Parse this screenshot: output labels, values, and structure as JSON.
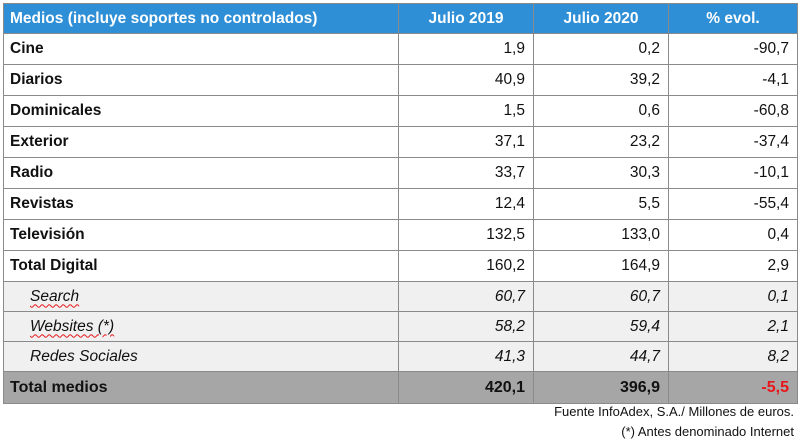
{
  "table": {
    "headers": [
      "Medios (incluye soportes no controlados)",
      "Julio 2019",
      "Julio 2020",
      "% evol."
    ],
    "rows": [
      {
        "label": "Cine",
        "y2019": "1,9",
        "y2020": "0,2",
        "evol": "-90,7"
      },
      {
        "label": "Diarios",
        "y2019": "40,9",
        "y2020": "39,2",
        "evol": "-4,1"
      },
      {
        "label": "Dominicales",
        "y2019": "1,5",
        "y2020": "0,6",
        "evol": "-60,8"
      },
      {
        "label": "Exterior",
        "y2019": "37,1",
        "y2020": "23,2",
        "evol": "-37,4"
      },
      {
        "label": "Radio",
        "y2019": "33,7",
        "y2020": "30,3",
        "evol": "-10,1"
      },
      {
        "label": "Revistas",
        "y2019": "12,4",
        "y2020": "5,5",
        "evol": "-55,4"
      },
      {
        "label": "Televisión",
        "y2019": "132,5",
        "y2020": "133,0",
        "evol": "0,4"
      },
      {
        "label": "Total Digital",
        "y2019": "160,2",
        "y2020": "164,9",
        "evol": "2,9"
      }
    ],
    "subrows": [
      {
        "label": "Search",
        "y2019": "60,7",
        "y2020": "60,7",
        "evol": "0,1"
      },
      {
        "label": "Websites (*)",
        "y2019": "58,2",
        "y2020": "59,4",
        "evol": "2,1"
      },
      {
        "label": "Redes Sociales",
        "y2019": "41,3",
        "y2020": "44,7",
        "evol": "8,2"
      }
    ],
    "total": {
      "label": "Total medios",
      "y2019": "420,1",
      "y2020": "396,9",
      "evol": "-5,5"
    }
  },
  "footer": {
    "source": "Fuente InfoAdex, S.A./ Millones de euros.",
    "note": "(*) Antes denominado Internet"
  },
  "colors": {
    "header_bg": "#2e8fd6",
    "negative": "#e8161b",
    "total_bg": "#a6a6a6"
  }
}
